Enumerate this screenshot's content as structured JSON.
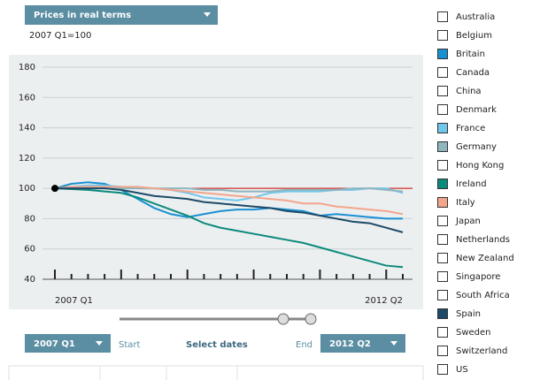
{
  "chart_data": {
    "type": "line",
    "title": "Prices in real terms",
    "subtitle": "2007 Q1=100",
    "categories": [
      "2007 Q1",
      null,
      null,
      null,
      null,
      null,
      null,
      null,
      null,
      null,
      null,
      null,
      null,
      null,
      null,
      null,
      null,
      null,
      null,
      null,
      null,
      "2012 Q2"
    ],
    "ylim": [
      40,
      180
    ],
    "yticks": [
      40,
      60,
      80,
      100,
      120,
      140,
      160,
      180
    ],
    "grid": true,
    "reference_line": 100,
    "reference_color": "#d0302a",
    "series": [
      {
        "name": "Australia",
        "values": null
      },
      {
        "name": "Belgium",
        "values": null
      },
      {
        "name": "Britain",
        "color": "#1a90d2",
        "values": [
          100,
          103,
          104,
          103,
          99,
          93,
          87,
          83,
          81,
          83,
          85,
          86,
          86,
          87,
          86,
          85,
          82,
          83,
          82,
          81,
          80,
          80
        ]
      },
      {
        "name": "Canada",
        "values": null
      },
      {
        "name": "China",
        "values": null
      },
      {
        "name": "Denmark",
        "values": null
      },
      {
        "name": "France",
        "color": "#72c6ea",
        "values": [
          100,
          101,
          102,
          102,
          101,
          100,
          100,
          99,
          97,
          94,
          93,
          92,
          94,
          97,
          98,
          98,
          98,
          99,
          99,
          100,
          100,
          97
        ]
      },
      {
        "name": "Germany",
        "color": "#8fb5bd",
        "values": [
          100,
          100,
          100,
          100,
          100,
          100,
          100,
          100,
          100,
          99,
          99,
          98,
          98,
          98,
          99,
          99,
          99,
          99,
          100,
          100,
          99,
          98
        ]
      },
      {
        "name": "Hong Kong",
        "values": null
      },
      {
        "name": "Ireland",
        "color": "#0b8a7c",
        "values": [
          100,
          99.5,
          99,
          98,
          97,
          94,
          90,
          86,
          82,
          77,
          74,
          72,
          70,
          68,
          66,
          64,
          61,
          58,
          55,
          52,
          49,
          48
        ]
      },
      {
        "name": "Italy",
        "color": "#f2a68c",
        "values": [
          100,
          101,
          101,
          101,
          101,
          101,
          100,
          99,
          98,
          97,
          96,
          95,
          94,
          93,
          92,
          90,
          90,
          88,
          87,
          86,
          85,
          83
        ]
      },
      {
        "name": "Japan",
        "values": null
      },
      {
        "name": "Netherlands",
        "values": null
      },
      {
        "name": "New Zealand",
        "values": null
      },
      {
        "name": "Singapore",
        "values": null
      },
      {
        "name": "South Africa",
        "values": null
      },
      {
        "name": "Spain",
        "color": "#1c4a68",
        "values": [
          100,
          100,
          100,
          100,
          99,
          97,
          95,
          94,
          93,
          91,
          90,
          89,
          88,
          87,
          85,
          84,
          82,
          80,
          78,
          77,
          74,
          71
        ]
      },
      {
        "name": "Sweden",
        "values": null
      },
      {
        "name": "Switzerland",
        "values": null
      },
      {
        "name": "US",
        "values": null
      }
    ],
    "controls": {
      "start_value": "2007 Q1",
      "start_label": "Start",
      "select_label": "Select dates",
      "end_label": "End",
      "end_value": "2012 Q2"
    }
  }
}
